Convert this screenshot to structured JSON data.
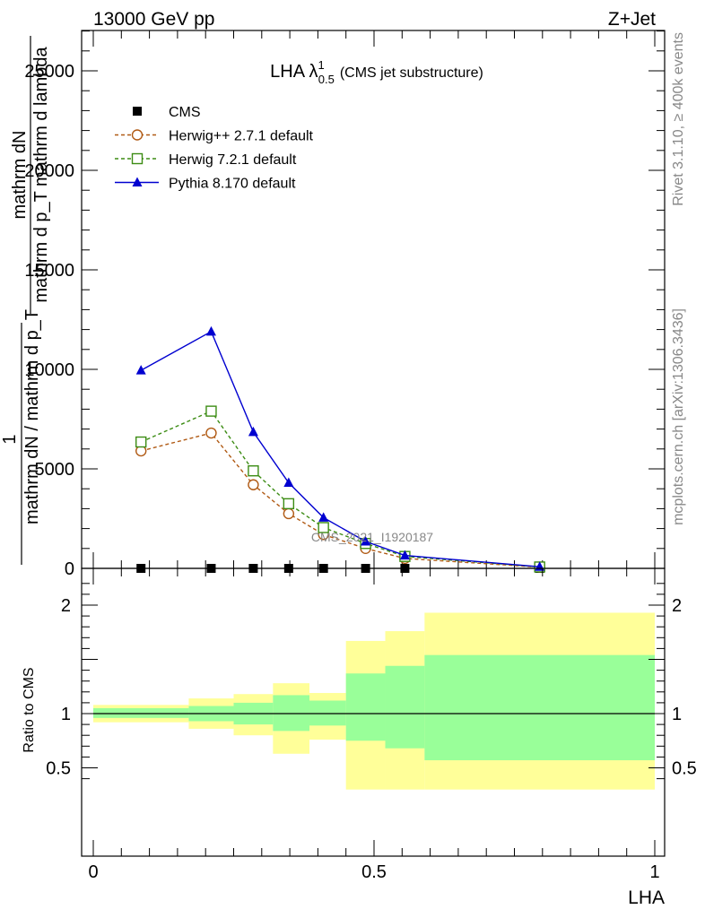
{
  "header": {
    "energy_label": "13000 GeV pp",
    "process_label": "Z+Jet"
  },
  "side_notes": {
    "rivet": "Rivet 3.1.10, ≥ 400k events",
    "source": "mcplots.cern.ch [arXiv:1306.3436]"
  },
  "chart_data": [
    {
      "type": "line",
      "title": "LHA λ",
      "title_superscript": "1",
      "title_subscript": "0.5",
      "subtitle": "(CMS jet substructure)",
      "ylabel_lines": [
        "mathrm dN",
        "mathrm d p_T mathrm d lambda",
        "1",
        "mathrm dN / mathrm d p_T"
      ],
      "xlim": [
        0,
        1
      ],
      "ylim": [
        0,
        25000
      ],
      "yticks": [
        0,
        5000,
        10000,
        15000,
        20000,
        25000
      ],
      "ytick_labels": [
        "0",
        "5000",
        "10000",
        "15000",
        "20000",
        "25000"
      ],
      "watermark": "CMS_2021_I1920187",
      "legend_position": "top-left",
      "x": [
        0.085,
        0.21,
        0.285,
        0.348,
        0.41,
        0.485,
        0.555,
        0.795
      ],
      "series": [
        {
          "name": "CMS",
          "marker": "filled-square",
          "color": "#000000",
          "values": [
            0,
            0,
            0,
            0,
            0,
            0,
            0,
            0
          ]
        },
        {
          "name": "Herwig++ 2.7.1 default",
          "marker": "open-circle",
          "color": "#b05a14",
          "dash": true,
          "values": [
            5900,
            6800,
            4200,
            2750,
            1700,
            1000,
            500,
            60
          ]
        },
        {
          "name": "Herwig 7.2.1 default",
          "marker": "open-square",
          "color": "#3c8c14",
          "dash": true,
          "values": [
            6350,
            7900,
            4900,
            3250,
            2050,
            1250,
            600,
            70
          ]
        },
        {
          "name": "Pythia 8.170 default",
          "marker": "filled-triangle",
          "color": "#0000d0",
          "dash": false,
          "values": [
            9950,
            11900,
            6850,
            4300,
            2550,
            1350,
            650,
            80
          ]
        }
      ]
    },
    {
      "type": "area",
      "ylabel": "Ratio to CMS",
      "xlabel": "LHA",
      "xlim": [
        0,
        1
      ],
      "ylim": [
        0.35,
        2.35
      ],
      "xticks": [
        0,
        0.5,
        1
      ],
      "xtick_labels": [
        "0",
        "0.5",
        "1"
      ],
      "yticks": [
        0.5,
        1,
        2
      ],
      "ytick_labels": [
        "0.5",
        "1",
        "2"
      ],
      "reference_line": 1,
      "bin_edges": [
        0,
        0.17,
        0.25,
        0.32,
        0.385,
        0.45,
        0.52,
        0.59,
        1.0
      ],
      "outer_band": {
        "color": "#ffff99",
        "low": [
          0.92,
          0.86,
          0.8,
          0.63,
          0.76,
          0.3,
          0.3,
          0.3
        ],
        "high": [
          1.08,
          1.14,
          1.18,
          1.28,
          1.19,
          1.67,
          1.76,
          1.93
        ]
      },
      "inner_band": {
        "color": "#99ff99",
        "low": [
          0.96,
          0.93,
          0.9,
          0.84,
          0.89,
          0.75,
          0.68,
          0.57
        ],
        "high": [
          1.05,
          1.07,
          1.1,
          1.17,
          1.12,
          1.37,
          1.44,
          1.54
        ]
      }
    }
  ]
}
